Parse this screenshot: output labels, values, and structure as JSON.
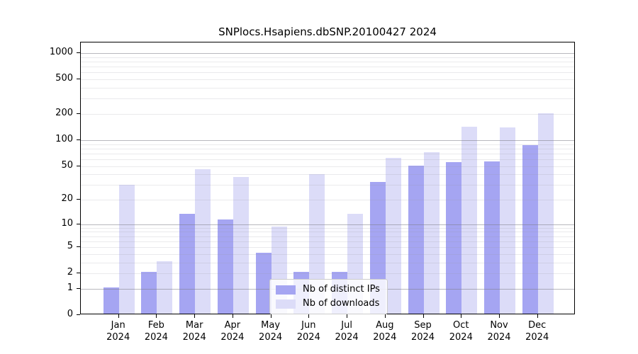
{
  "chart_data": {
    "type": "bar",
    "title": "SNPlocs.Hsapiens.dbSNP.20100427 2024",
    "categories": [
      "Jan",
      "Feb",
      "Mar",
      "Apr",
      "May",
      "Jun",
      "Jul",
      "Aug",
      "Sep",
      "Oct",
      "Nov",
      "Dec"
    ],
    "category_year": "2024",
    "series": [
      {
        "name": "Nb of distinct IPs",
        "color": "#a5a5f2",
        "values": [
          1,
          2,
          13,
          11,
          4,
          2,
          2,
          31,
          49,
          53,
          54,
          85
        ]
      },
      {
        "name": "Nb of downloads",
        "color": "#dcdcf8",
        "values": [
          29,
          3,
          44,
          36,
          9,
          39,
          13,
          60,
          70,
          137,
          135,
          196
        ]
      }
    ],
    "xlabel": "",
    "ylabel": "",
    "y_axis": {
      "scale": "log1p",
      "tick_labels": [
        "0",
        "1",
        "2",
        "5",
        "10",
        "20",
        "50",
        "100",
        "200",
        "500",
        "1000"
      ],
      "ticks": [
        0,
        1,
        2,
        5,
        10,
        20,
        50,
        100,
        200,
        500,
        1000
      ],
      "ylim": [
        0,
        1325
      ]
    },
    "grid": "on, drawn above bars; darker lines at powers of 10",
    "legend_position": "lower center"
  }
}
